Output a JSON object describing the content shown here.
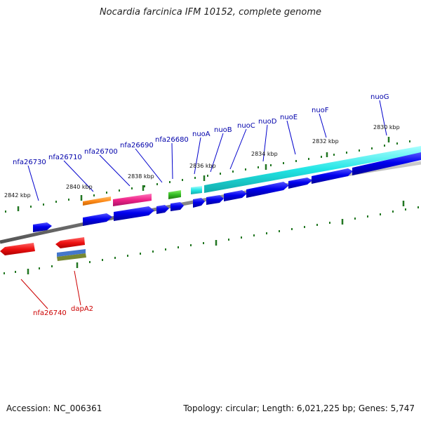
{
  "title": "Nocardia farcinica IFM 10152, complete genome",
  "footer": {
    "accession": "Accession: NC_006361",
    "summary": "Topology: circular; Length: 6,021,225 bp; Genes: 5,747"
  },
  "kbp_labels": [
    "2830 kbp",
    "2832 kbp",
    "2834 kbp",
    "2836 kbp",
    "2838 kbp",
    "2840 kbp",
    "2842 kbp"
  ],
  "gene_labels_top": [
    "nuoG",
    "nuoF",
    "nuoE",
    "nuoD",
    "nuoC",
    "nuoB",
    "nuoA",
    "nfa26680",
    "nfa26690",
    "nfa26700",
    "nfa26710",
    "nfa26730"
  ],
  "gene_labels_bottom": [
    "nfa26740",
    "dapA2"
  ],
  "colors": {
    "backbone": "#888888",
    "cds_blue": "#0000ee",
    "cyan": "#22e5e5",
    "orange": "#ff8c1a",
    "magenta": "#ee2288",
    "green": "#33bb22",
    "red": "#ee1111",
    "ticks": "#227722",
    "label_blue": "#0000aa",
    "label_red": "#cc0000"
  }
}
